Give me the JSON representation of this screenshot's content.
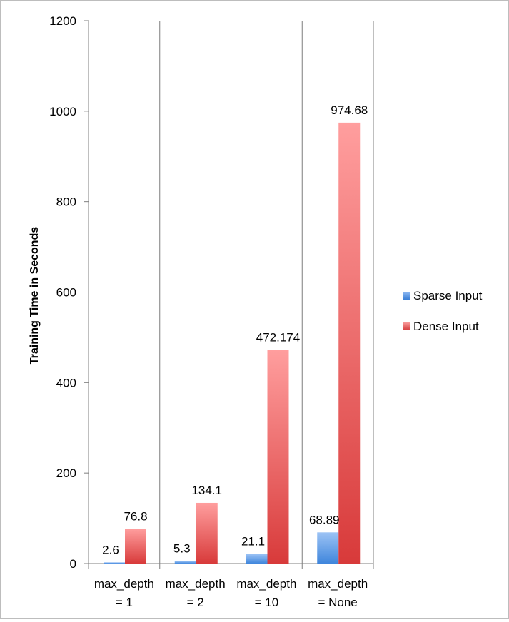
{
  "chart_data": {
    "type": "bar",
    "title": "",
    "xlabel": "",
    "ylabel": "Training Time in Seconds",
    "ylim": [
      0,
      1200
    ],
    "yticks": [
      0,
      200,
      400,
      600,
      800,
      1000,
      1200
    ],
    "categories": [
      [
        "max_depth",
        "= 1"
      ],
      [
        "max_depth",
        "= 2"
      ],
      [
        "max_depth",
        "= 10"
      ],
      [
        "max_depth",
        "= None"
      ]
    ],
    "series": [
      {
        "name": "Sparse Input",
        "values": [
          2.6,
          5.3,
          21.1,
          68.89
        ],
        "labels": [
          "2.6",
          "5.3",
          "21.1",
          "68.89"
        ],
        "color": "#4a8fdd"
      },
      {
        "name": "Dense Input",
        "values": [
          76.8,
          134.1,
          472.174,
          974.68
        ],
        "labels": [
          "76.8",
          "134.1",
          "472.174",
          "974.68"
        ],
        "color": "#e04848"
      }
    ],
    "grid": "vertical-category-separators",
    "legend": "right"
  }
}
